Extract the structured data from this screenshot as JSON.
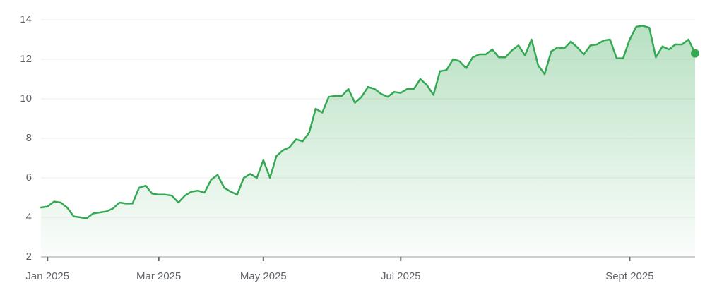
{
  "chart_data": {
    "type": "line",
    "x": [
      0,
      1,
      2,
      3,
      4,
      5,
      6,
      7,
      8,
      9,
      10,
      11,
      12,
      13,
      14,
      15,
      16,
      17,
      18,
      19,
      20,
      21,
      22,
      23,
      24,
      25,
      26,
      27,
      28,
      29,
      30,
      31,
      32,
      33,
      34,
      35,
      36,
      37,
      38,
      39,
      40,
      41,
      42,
      43,
      44,
      45,
      46,
      47,
      48,
      49,
      50,
      51,
      52,
      53,
      54,
      55,
      56,
      57,
      58,
      59,
      60,
      61,
      62,
      63,
      64,
      65,
      66,
      67,
      68,
      69,
      70,
      71,
      72,
      73,
      74,
      75,
      76,
      77,
      78,
      79,
      80,
      81,
      82,
      83,
      84,
      85,
      86,
      87,
      88,
      89,
      90,
      91,
      92,
      93,
      94,
      95,
      96,
      97,
      98,
      99,
      100
    ],
    "series": [
      {
        "color": "#34a853",
        "values": [
          4.5,
          4.55,
          4.8,
          4.75,
          4.5,
          4.05,
          4.0,
          3.95,
          4.2,
          4.25,
          4.3,
          4.45,
          4.75,
          4.7,
          4.7,
          5.5,
          5.6,
          5.2,
          5.15,
          5.15,
          5.1,
          4.75,
          5.1,
          5.3,
          5.35,
          5.25,
          5.9,
          6.15,
          5.5,
          5.3,
          5.15,
          6.0,
          6.2,
          6.0,
          6.9,
          6.0,
          7.1,
          7.4,
          7.55,
          7.95,
          7.85,
          8.3,
          9.5,
          9.3,
          10.1,
          10.15,
          10.15,
          10.5,
          9.8,
          10.1,
          10.6,
          10.5,
          10.25,
          10.1,
          10.35,
          10.3,
          10.5,
          10.5,
          11.0,
          10.7,
          10.2,
          11.4,
          11.45,
          12.0,
          11.9,
          11.55,
          12.1,
          12.25,
          12.25,
          12.5,
          12.1,
          12.1,
          12.45,
          12.7,
          12.2,
          13.0,
          11.7,
          11.25,
          12.4,
          12.6,
          12.55,
          12.9,
          12.6,
          12.25,
          12.7,
          12.75,
          12.95,
          13.0,
          12.05,
          12.05,
          13.0,
          13.65,
          13.7,
          13.6,
          12.1,
          12.65,
          12.5,
          12.75,
          12.75,
          13.0,
          12.3
        ]
      }
    ],
    "xlim": [
      0,
      100
    ],
    "xticks": [
      {
        "value": 1,
        "label": "Jan 2025"
      },
      {
        "value": 18,
        "label": "Mar 2025"
      },
      {
        "value": 34,
        "label": "May 2025"
      },
      {
        "value": 55,
        "label": "Jul 2025"
      },
      {
        "value": 90,
        "label": "Sept 2025"
      }
    ],
    "ylim": [
      2,
      14
    ],
    "yticks": [
      2,
      4,
      6,
      8,
      10,
      12,
      14
    ],
    "grid": true
  }
}
